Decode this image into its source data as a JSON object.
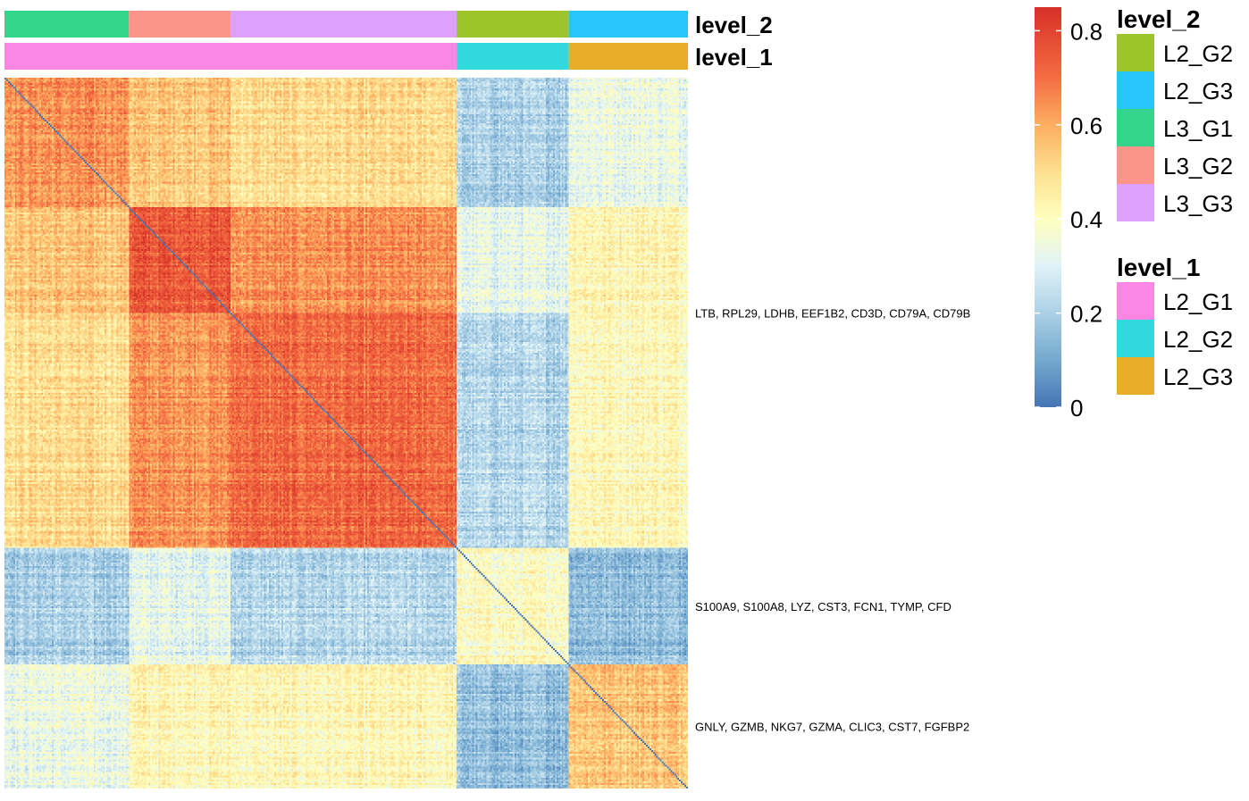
{
  "chart_data": {
    "type": "heatmap",
    "title": "",
    "annotation_rows": [
      {
        "name": "level_2",
        "segments": [
          {
            "label": "L3_G1",
            "color": "#33D58B",
            "size": 71
          },
          {
            "label": "L3_G2",
            "color": "#FB958A",
            "size": 58
          },
          {
            "label": "L3_G3",
            "color": "#DDA0FB",
            "size": 129
          },
          {
            "label": "L2_G2",
            "color": "#9CC52A",
            "size": 64
          },
          {
            "label": "L2_G3",
            "color": "#28C5FA",
            "size": 68
          }
        ]
      },
      {
        "name": "level_1",
        "segments": [
          {
            "label": "L2_G1",
            "color": "#FB86E4",
            "size": 258
          },
          {
            "label": "L2_G2",
            "color": "#31D9DF",
            "size": 64
          },
          {
            "label": "L2_G3",
            "color": "#E8AE2A",
            "size": 68
          }
        ]
      }
    ],
    "block_correlation_matrix": {
      "groups": [
        "L3_G1",
        "L3_G2",
        "L3_G3",
        "L2_G2",
        "L2_G3"
      ],
      "values": [
        [
          0.64,
          0.55,
          0.5,
          0.2,
          0.34
        ],
        [
          0.55,
          0.75,
          0.64,
          0.32,
          0.43
        ],
        [
          0.5,
          0.64,
          0.71,
          0.22,
          0.42
        ],
        [
          0.2,
          0.32,
          0.22,
          0.4,
          0.16
        ],
        [
          0.34,
          0.43,
          0.42,
          0.16,
          0.56
        ]
      ],
      "diagonal": 0.0
    },
    "row_labels": [
      {
        "text": "LTB, RPL29, LDHB, EEF1B2, CD3D, CD79A, CD79B",
        "row_group": "L2_G1"
      },
      {
        "text": "S100A9, S100A8, LYZ, CST3, FCN1, TYMP, CFD",
        "row_group": "L2_G2"
      },
      {
        "text": "GNLY, GZMB, NKG7, GZMA, CLIC3, CST7, FGFBP2",
        "row_group": "L2_G3"
      }
    ],
    "colorbar": {
      "range": [
        0,
        0.85
      ],
      "ticks": [
        "0",
        "0.2",
        "0.4",
        "0.6",
        "0.8"
      ],
      "tick_values": [
        0,
        0.2,
        0.4,
        0.6,
        0.8
      ],
      "stops": [
        {
          "value": 0.0,
          "color": "#4575B4"
        },
        {
          "value": 0.1,
          "color": "#74A9CF"
        },
        {
          "value": 0.2,
          "color": "#ABD0E6"
        },
        {
          "value": 0.3,
          "color": "#E0F3F8"
        },
        {
          "value": 0.4,
          "color": "#FFFFBF"
        },
        {
          "value": 0.5,
          "color": "#FEE090"
        },
        {
          "value": 0.6,
          "color": "#FDAE61"
        },
        {
          "value": 0.7,
          "color": "#F46D43"
        },
        {
          "value": 0.85,
          "color": "#D73027"
        }
      ]
    },
    "legends": [
      {
        "title": "level_2",
        "items": [
          {
            "label": "L2_G2",
            "color": "#9CC52A"
          },
          {
            "label": "L2_G3",
            "color": "#28C5FA"
          },
          {
            "label": "L3_G1",
            "color": "#33D58B"
          },
          {
            "label": "L3_G2",
            "color": "#FB958A"
          },
          {
            "label": "L3_G3",
            "color": "#DDA0FB"
          }
        ]
      },
      {
        "title": "level_1",
        "items": [
          {
            "label": "L2_G1",
            "color": "#FB86E4"
          },
          {
            "label": "L2_G2",
            "color": "#31D9DF"
          },
          {
            "label": "L2_G3",
            "color": "#E8AE2A"
          }
        ]
      }
    ]
  }
}
